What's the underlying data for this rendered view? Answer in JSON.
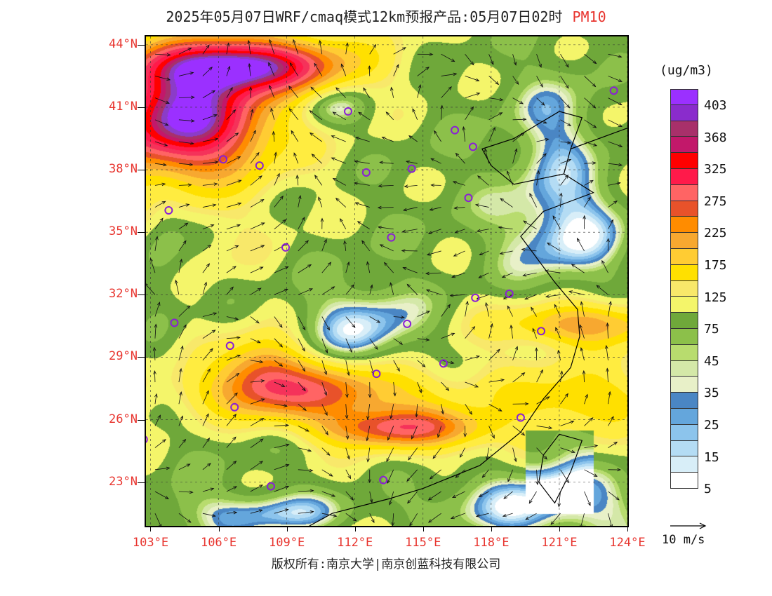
{
  "title": {
    "main": "2025年05月07日WRF/cmaq模式12km预报产品:05月07日02时",
    "variable": "PM10"
  },
  "map": {
    "lat_labels": [
      "44°N",
      "41°N",
      "38°N",
      "35°N",
      "32°N",
      "29°N",
      "26°N",
      "23°N"
    ],
    "lon_labels": [
      "103°E",
      "106°E",
      "109°E",
      "112°E",
      "115°E",
      "118°E",
      "121°E",
      "124°E"
    ],
    "lat_range": [
      20.9,
      44.4
    ],
    "lon_range": [
      102.8,
      124.0
    ],
    "city_markers_color": "#8a1fd6",
    "cities": [
      {
        "lon": 108.95,
        "lat": 34.27
      },
      {
        "lon": 112.5,
        "lat": 37.87
      },
      {
        "lon": 111.7,
        "lat": 40.8
      },
      {
        "lon": 113.6,
        "lat": 34.75
      },
      {
        "lon": 116.4,
        "lat": 39.9
      },
      {
        "lon": 117.2,
        "lat": 39.1
      },
      {
        "lon": 114.5,
        "lat": 38.05
      },
      {
        "lon": 117.0,
        "lat": 36.65
      },
      {
        "lon": 123.4,
        "lat": 41.8
      },
      {
        "lon": 106.2,
        "lat": 38.5
      },
      {
        "lon": 103.8,
        "lat": 36.05
      },
      {
        "lon": 117.3,
        "lat": 31.85
      },
      {
        "lon": 118.8,
        "lat": 32.05
      },
      {
        "lon": 120.2,
        "lat": 30.25
      },
      {
        "lon": 114.3,
        "lat": 30.6
      },
      {
        "lon": 112.95,
        "lat": 28.2
      },
      {
        "lon": 115.9,
        "lat": 28.7
      },
      {
        "lon": 106.5,
        "lat": 29.55
      },
      {
        "lon": 104.05,
        "lat": 30.65
      },
      {
        "lon": 106.7,
        "lat": 26.6
      },
      {
        "lon": 102.7,
        "lat": 25.05
      },
      {
        "lon": 108.3,
        "lat": 22.8
      },
      {
        "lon": 113.25,
        "lat": 23.1
      },
      {
        "lon": 119.3,
        "lat": 26.1
      },
      {
        "lon": 107.8,
        "lat": 38.2
      }
    ]
  },
  "colorbar": {
    "unit": "(ug/m3)",
    "labels": [
      "403",
      "368",
      "325",
      "275",
      "225",
      "175",
      "125",
      "75",
      "45",
      "35",
      "25",
      "15",
      "5"
    ],
    "colors": [
      "#9b30ff",
      "#8b3cc8",
      "#a8306a",
      "#c2186a",
      "#ff0000",
      "#ff1a4a",
      "#f5325a",
      "#ff6464",
      "#e8522a",
      "#ff8c00",
      "#f7a830",
      "#ffcc33",
      "#ffe000",
      "#ffec40",
      "#f8e86a",
      "#f4f56a",
      "#6fa83a",
      "#8cc04a",
      "#b8dc6e",
      "#d4e8a8",
      "#e8f0c8",
      "#4a86c4",
      "#64a6dc",
      "#8cc4ec",
      "#b4dcf4",
      "#d8eef8",
      "#ffffff"
    ]
  },
  "wind_reference": "10 m/s",
  "footer": "版权所有:南京大学|南京创蓝科技有限公司"
}
